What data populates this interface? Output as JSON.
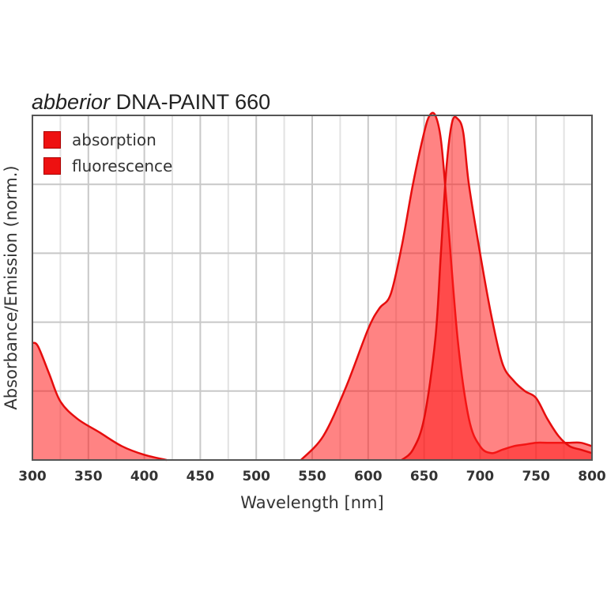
{
  "chart_data": {
    "type": "area",
    "title_brand": "abberior",
    "title_name": "DNA-PAINT 660",
    "title": "abberior DNA-PAINT 660",
    "xlabel": "Wavelength [nm]",
    "ylabel": "Absorbance/Emission (norm.)",
    "xlim": [
      300,
      800
    ],
    "ylim": [
      0,
      1
    ],
    "x_ticks": [
      "300",
      "350",
      "400",
      "450",
      "500",
      "550",
      "600",
      "650",
      "700",
      "750",
      "800"
    ],
    "grid": true,
    "legend_position": "upper-left",
    "legend": [
      "absorption",
      "fluorescence"
    ],
    "series": [
      {
        "name": "absorption",
        "color": "#ff6b6b",
        "x": [
          300,
          305,
          315,
          325,
          340,
          360,
          380,
          400,
          420,
          540,
          560,
          580,
          600,
          610,
          620,
          630,
          640,
          650,
          655,
          660,
          665,
          670,
          680,
          690,
          700,
          710,
          720,
          730,
          740,
          750,
          760,
          770,
          780,
          790,
          800
        ],
        "values": [
          0.34,
          0.33,
          0.25,
          0.17,
          0.12,
          0.08,
          0.04,
          0.015,
          0.0,
          0.0,
          0.07,
          0.21,
          0.38,
          0.44,
          0.48,
          0.62,
          0.8,
          0.95,
          1.0,
          1.0,
          0.93,
          0.75,
          0.35,
          0.12,
          0.04,
          0.02,
          0.03,
          0.04,
          0.045,
          0.05,
          0.05,
          0.05,
          0.05,
          0.05,
          0.04
        ]
      },
      {
        "name": "fluorescence",
        "color": "#ff6b6b",
        "x": [
          630,
          640,
          650,
          660,
          665,
          670,
          675,
          680,
          685,
          690,
          700,
          710,
          720,
          730,
          740,
          750,
          760,
          770,
          780,
          790,
          800
        ],
        "values": [
          0.0,
          0.03,
          0.12,
          0.35,
          0.6,
          0.85,
          0.98,
          0.99,
          0.95,
          0.8,
          0.6,
          0.42,
          0.28,
          0.23,
          0.2,
          0.18,
          0.12,
          0.07,
          0.04,
          0.03,
          0.02
        ]
      }
    ]
  },
  "legend": {
    "items": [
      {
        "label": "absorption",
        "color": "#ee1111"
      },
      {
        "label": "fluorescence",
        "color": "#ee1111"
      }
    ]
  }
}
